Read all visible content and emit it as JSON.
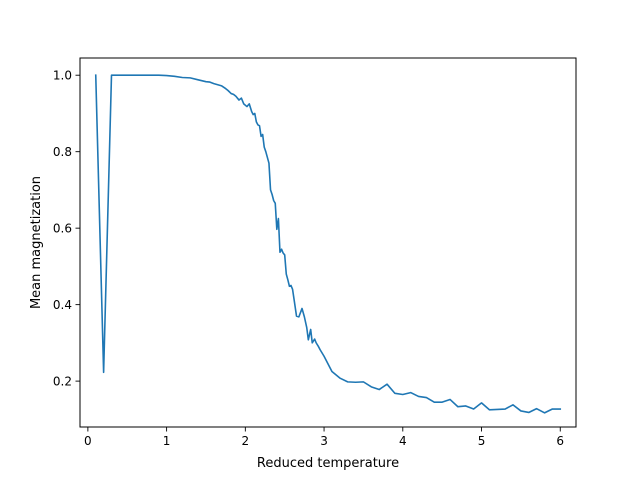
{
  "chart_data": {
    "type": "line",
    "title": "",
    "xlabel": "Reduced temperature",
    "ylabel": "Mean magnetization",
    "xlim": [
      -0.1,
      6.2
    ],
    "ylim": [
      0.08,
      1.045
    ],
    "xticks": [
      0,
      1,
      2,
      3,
      4,
      5,
      6
    ],
    "xtick_labels": [
      "0",
      "1",
      "2",
      "3",
      "4",
      "5",
      "6"
    ],
    "yticks": [
      0.2,
      0.4,
      0.6,
      0.8,
      1.0
    ],
    "ytick_labels": [
      "0.2",
      "0.4",
      "0.6",
      "0.8",
      "1.0"
    ],
    "grid": false,
    "series": [
      {
        "color": "#1f77b4",
        "x": [
          0.1,
          0.2,
          0.3,
          0.5,
          0.7,
          0.9,
          1.0,
          1.1,
          1.2,
          1.3,
          1.4,
          1.5,
          1.55,
          1.6,
          1.65,
          1.7,
          1.75,
          1.78,
          1.82,
          1.85,
          1.88,
          1.92,
          1.95,
          1.98,
          2.02,
          2.05,
          2.08,
          2.1,
          2.12,
          2.14,
          2.16,
          2.18,
          2.2,
          2.22,
          2.24,
          2.26,
          2.28,
          2.3,
          2.32,
          2.34,
          2.36,
          2.38,
          2.4,
          2.42,
          2.44,
          2.46,
          2.48,
          2.5,
          2.52,
          2.54,
          2.56,
          2.58,
          2.6,
          2.62,
          2.65,
          2.68,
          2.72,
          2.75,
          2.78,
          2.8,
          2.83,
          2.85,
          2.88,
          2.9,
          2.93,
          2.95,
          3.0,
          3.1,
          3.2,
          3.3,
          3.4,
          3.5,
          3.6,
          3.7,
          3.8,
          3.9,
          4.0,
          4.1,
          4.2,
          4.3,
          4.4,
          4.5,
          4.6,
          4.7,
          4.8,
          4.9,
          5.0,
          5.1,
          5.2,
          5.3,
          5.4,
          5.5,
          5.6,
          5.7,
          5.8,
          5.9,
          6.0
        ],
        "y": [
          1.0,
          0.223,
          1.0,
          1.0,
          1.0,
          1.0,
          0.999,
          0.997,
          0.994,
          0.993,
          0.988,
          0.983,
          0.982,
          0.978,
          0.975,
          0.972,
          0.965,
          0.96,
          0.952,
          0.95,
          0.945,
          0.935,
          0.94,
          0.925,
          0.918,
          0.925,
          0.905,
          0.897,
          0.9,
          0.878,
          0.87,
          0.868,
          0.84,
          0.845,
          0.812,
          0.8,
          0.785,
          0.77,
          0.7,
          0.688,
          0.672,
          0.665,
          0.597,
          0.625,
          0.537,
          0.545,
          0.535,
          0.53,
          0.48,
          0.465,
          0.448,
          0.45,
          0.44,
          0.412,
          0.37,
          0.368,
          0.39,
          0.368,
          0.34,
          0.308,
          0.335,
          0.3,
          0.31,
          0.3,
          0.29,
          0.282,
          0.265,
          0.225,
          0.208,
          0.198,
          0.197,
          0.198,
          0.185,
          0.178,
          0.192,
          0.168,
          0.165,
          0.17,
          0.16,
          0.157,
          0.145,
          0.145,
          0.152,
          0.133,
          0.135,
          0.127,
          0.143,
          0.125,
          0.126,
          0.127,
          0.138,
          0.122,
          0.118,
          0.128,
          0.117,
          0.127,
          0.127
        ]
      }
    ]
  }
}
